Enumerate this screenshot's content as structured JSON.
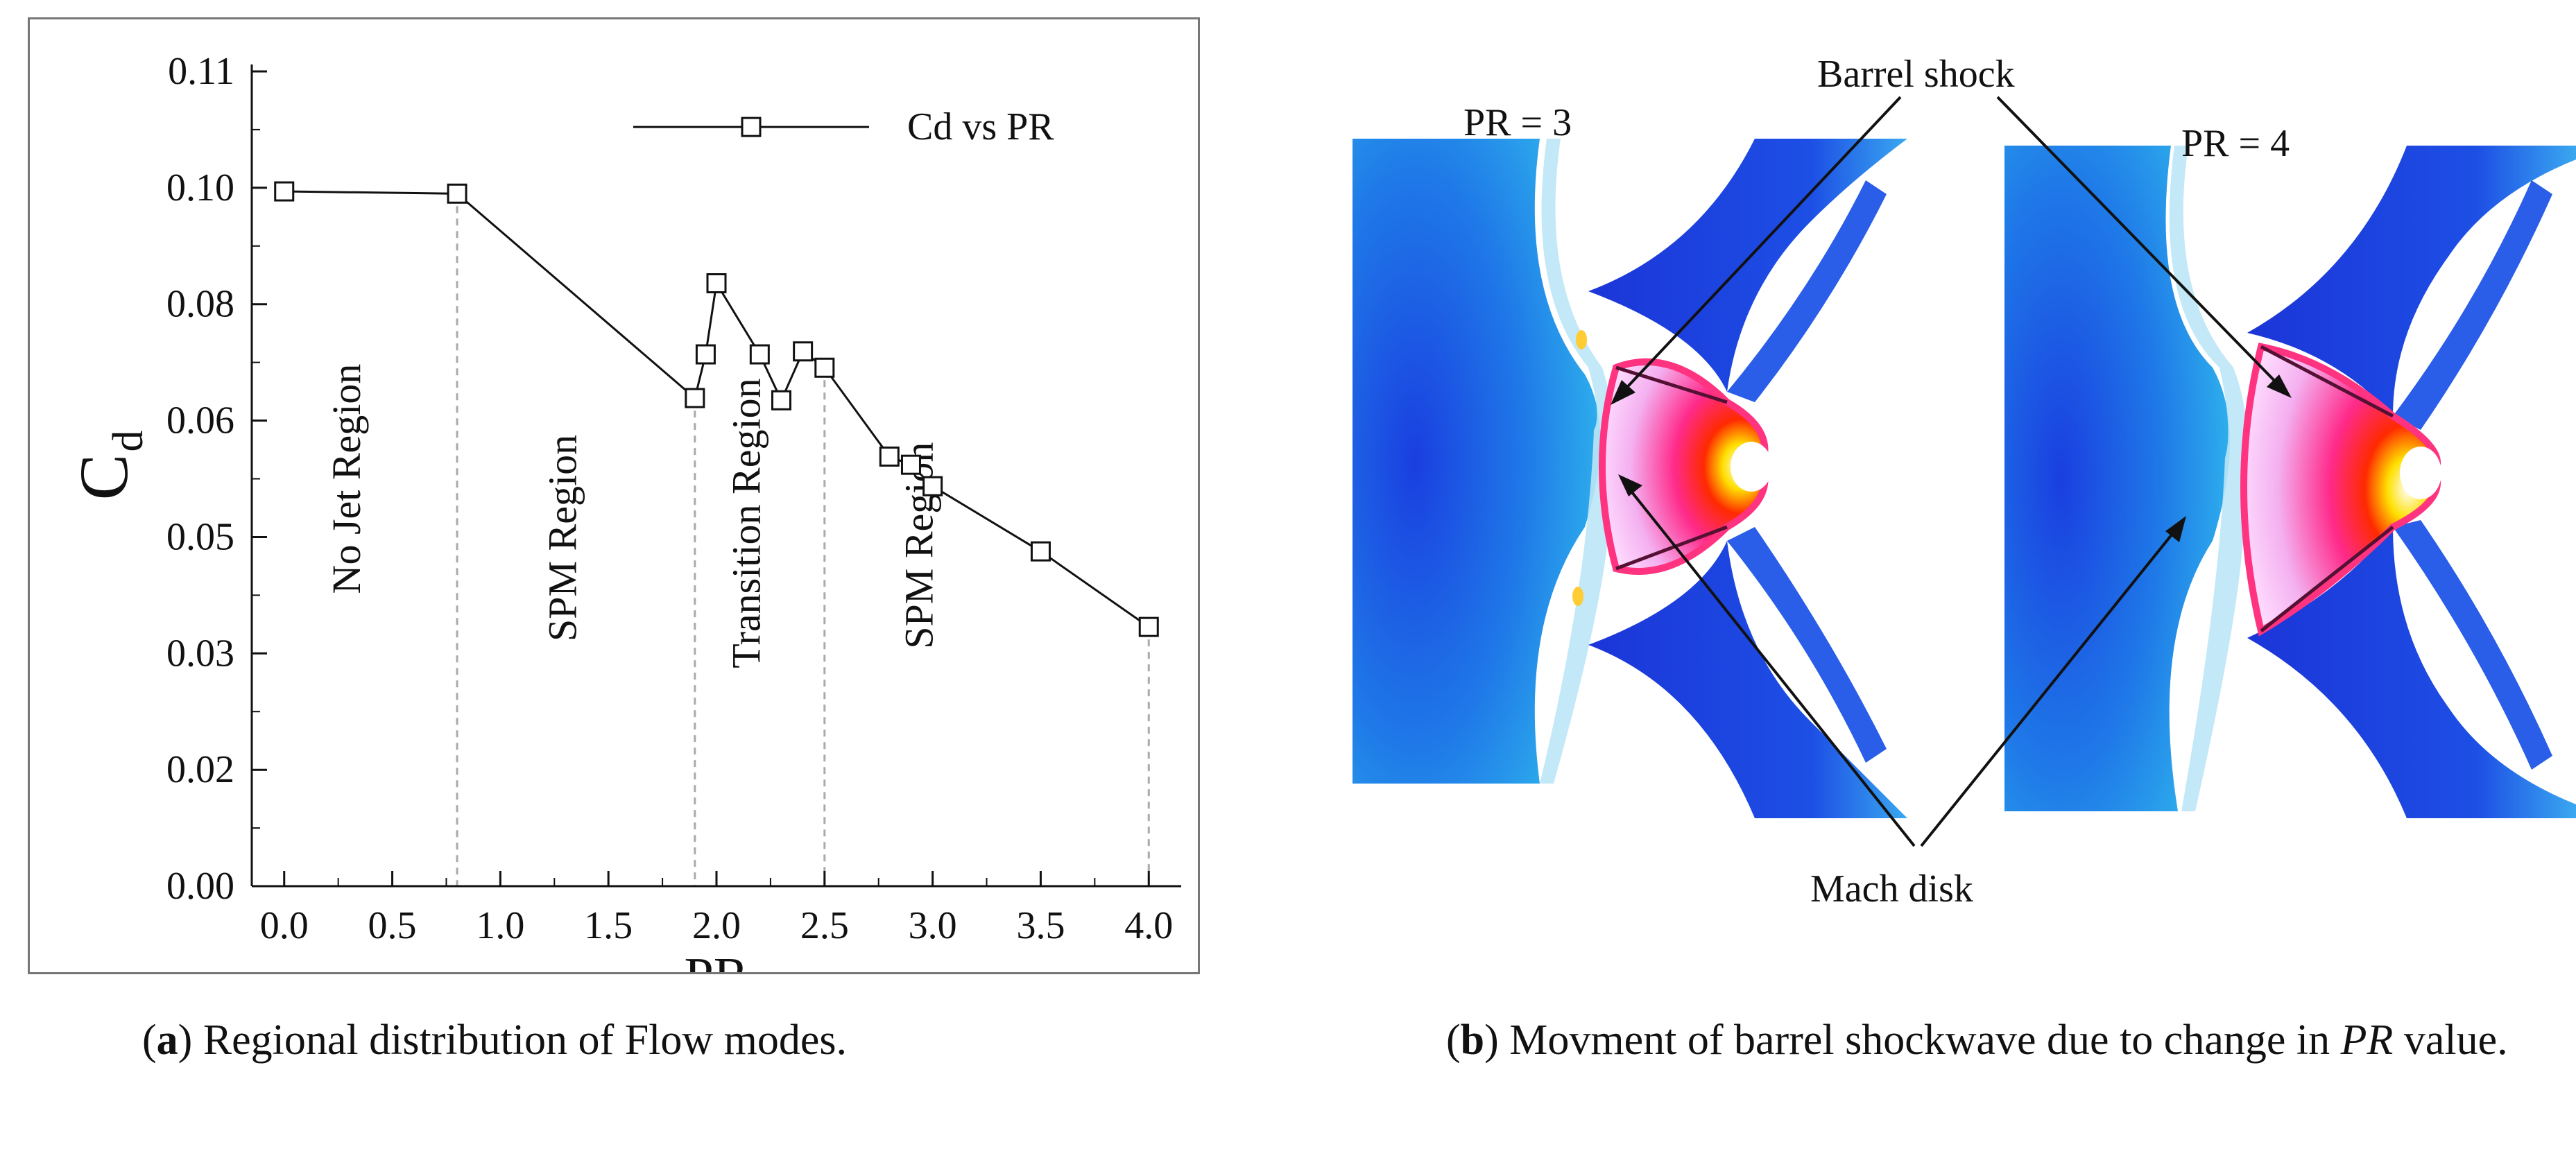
{
  "chart_data": {
    "type": "line",
    "title": "",
    "xlabel": "PR",
    "ylabel_main": "C",
    "ylabel_sub": "d",
    "xlim": [
      -0.15,
      4.15
    ],
    "ylim": [
      0.0,
      0.11
    ],
    "xticks": [
      "0.0",
      "0.5",
      "1.0",
      "1.5",
      "2.0",
      "2.5",
      "3.0",
      "3.5",
      "4.0"
    ],
    "xtick_values": [
      0.0,
      0.5,
      1.0,
      1.5,
      2.0,
      2.5,
      3.0,
      3.5,
      4.0
    ],
    "yticks": [
      "0.00",
      "0.02",
      "0.03",
      "0.05",
      "0.06",
      "0.08",
      "0.10",
      "0.11"
    ],
    "ytick_values": [
      0.0,
      0.01571,
      0.03143,
      0.04714,
      0.06286,
      0.07857,
      0.09429,
      0.11
    ],
    "legend": {
      "label": "Cd vs PR",
      "position": "top-right"
    },
    "series": [
      {
        "name": "Cd vs PR",
        "x": [
          0.0,
          0.8,
          1.9,
          1.95,
          2.0,
          2.2,
          2.3,
          2.4,
          2.5,
          2.8,
          2.9,
          3.0,
          3.5,
          4.0
        ],
        "y": [
          0.0938,
          0.0935,
          0.0659,
          0.0718,
          0.0814,
          0.0718,
          0.0656,
          0.0722,
          0.07,
          0.058,
          0.0569,
          0.054,
          0.0452,
          0.035
        ]
      }
    ],
    "region_dividers_x": [
      0.8,
      1.9,
      2.5,
      4.0
    ],
    "regions": [
      {
        "label": "No Jet Region",
        "x": 0.35,
        "y": 0.055
      },
      {
        "label": "SPM Region",
        "x": 1.35,
        "y": 0.047
      },
      {
        "label": "Transition Region",
        "x": 2.2,
        "y": 0.049
      },
      {
        "label": "SPM Region",
        "x": 3.0,
        "y": 0.046
      }
    ]
  },
  "panel_b": {
    "label_pr3": "PR = 3",
    "label_pr4": "PR = 4",
    "label_barrel": "Barrel shock",
    "label_mach": "Mach disk"
  },
  "captions": {
    "a_letter": "a",
    "a_text": " Regional distribution of Flow modes.",
    "b_letter": "b",
    "b_text1": " Movment of barrel shockwave due to change in ",
    "b_italic": "PR",
    "b_text2": " value."
  }
}
